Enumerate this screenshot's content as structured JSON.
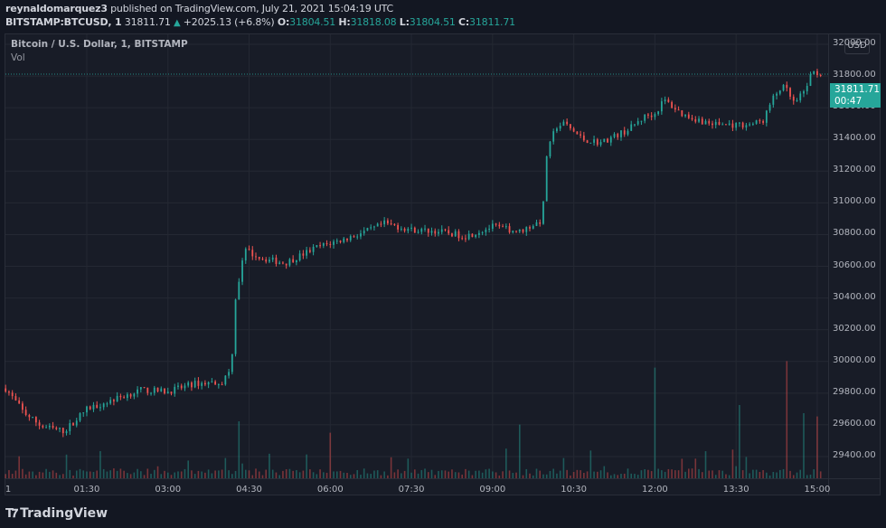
{
  "header": {
    "publisher": "reynaldomarquez3",
    "published_text": "published on TradingView.com, July 21, 2021 15:04:19 UTC",
    "symbol": "BITSTAMP:BTCUSD, 1",
    "last": "31811.71",
    "change": "+2025.13 (+6.8%)",
    "o_label": "O:",
    "o": "31804.51",
    "h_label": "H:",
    "h": "31818.08",
    "l_label": "L:",
    "l": "31804.51",
    "c_label": "C:",
    "c": "31811.71"
  },
  "legend": {
    "series_title": "Bitcoin / U.S. Dollar, 1, BITSTAMP",
    "volume_label": "Vol"
  },
  "price_scale": {
    "currency": "USD",
    "last_price": "31811.71",
    "countdown": "00:47"
  },
  "branding": {
    "logo_text": "TradingView"
  },
  "colors": {
    "up": "#26a69a",
    "down": "#ef5350",
    "background": "#181c27",
    "grid": "#242833"
  },
  "chart_data": {
    "type": "candlestick",
    "title": "Bitcoin / U.S. Dollar, 1, BITSTAMP",
    "interval": "1 minute",
    "xlabel": "",
    "ylabel": "USD",
    "x_tick_labels": [
      "1",
      "01:30",
      "03:00",
      "04:30",
      "06:00",
      "07:30",
      "09:00",
      "10:30",
      "12:00",
      "13:30",
      "15:00"
    ],
    "y_tick_labels": [
      "32000.00",
      "31800.00",
      "31600.00",
      "31400.00",
      "31200.00",
      "31000.00",
      "30800.00",
      "30600.00",
      "30400.00",
      "30200.00",
      "30000.00",
      "29800.00",
      "29600.00",
      "29400.00"
    ],
    "ylim": [
      29350,
      32050
    ],
    "last_price": 31811.71,
    "approx_price_path": [
      {
        "t": "00:00",
        "price": 29830
      },
      {
        "t": "00:20",
        "price": 29680
      },
      {
        "t": "00:40",
        "price": 29590
      },
      {
        "t": "01:05",
        "price": 29560
      },
      {
        "t": "01:30",
        "price": 29700
      },
      {
        "t": "02:00",
        "price": 29760
      },
      {
        "t": "02:30",
        "price": 29820
      },
      {
        "t": "03:00",
        "price": 29810
      },
      {
        "t": "03:30",
        "price": 29860
      },
      {
        "t": "04:00",
        "price": 29870
      },
      {
        "t": "04:10",
        "price": 29950
      },
      {
        "t": "04:15",
        "price": 30400
      },
      {
        "t": "04:25",
        "price": 30700
      },
      {
        "t": "04:45",
        "price": 30650
      },
      {
        "t": "05:10",
        "price": 30620
      },
      {
        "t": "05:45",
        "price": 30720
      },
      {
        "t": "06:15",
        "price": 30770
      },
      {
        "t": "06:45",
        "price": 30830
      },
      {
        "t": "07:00",
        "price": 30870
      },
      {
        "t": "07:30",
        "price": 30830
      },
      {
        "t": "08:00",
        "price": 30820
      },
      {
        "t": "08:30",
        "price": 30790
      },
      {
        "t": "09:00",
        "price": 30850
      },
      {
        "t": "09:30",
        "price": 30820
      },
      {
        "t": "09:55",
        "price": 30890
      },
      {
        "t": "10:00",
        "price": 31300
      },
      {
        "t": "10:10",
        "price": 31480
      },
      {
        "t": "10:20",
        "price": 31500
      },
      {
        "t": "10:40",
        "price": 31400
      },
      {
        "t": "11:00",
        "price": 31380
      },
      {
        "t": "11:30",
        "price": 31460
      },
      {
        "t": "11:50",
        "price": 31550
      },
      {
        "t": "12:00",
        "price": 31560
      },
      {
        "t": "12:10",
        "price": 31650
      },
      {
        "t": "12:30",
        "price": 31560
      },
      {
        "t": "13:00",
        "price": 31500
      },
      {
        "t": "13:30",
        "price": 31490
      },
      {
        "t": "13:50",
        "price": 31500
      },
      {
        "t": "14:00",
        "price": 31520
      },
      {
        "t": "14:10",
        "price": 31650
      },
      {
        "t": "14:20",
        "price": 31730
      },
      {
        "t": "14:25",
        "price": 31720
      },
      {
        "t": "14:35",
        "price": 31620
      },
      {
        "t": "14:45",
        "price": 31700
      },
      {
        "t": "14:55",
        "price": 31830
      },
      {
        "t": "15:04",
        "price": 31811.71
      }
    ],
    "volume_spikes": [
      {
        "t": "04:20",
        "rel": 0.35
      },
      {
        "t": "06:00",
        "rel": 0.28
      },
      {
        "t": "09:30",
        "rel": 0.33
      },
      {
        "t": "12:00",
        "rel": 0.68
      },
      {
        "t": "13:35",
        "rel": 0.45
      },
      {
        "t": "14:25",
        "rel": 0.72
      },
      {
        "t": "14:45",
        "rel": 0.4
      },
      {
        "t": "15:00",
        "rel": 0.38
      }
    ]
  }
}
